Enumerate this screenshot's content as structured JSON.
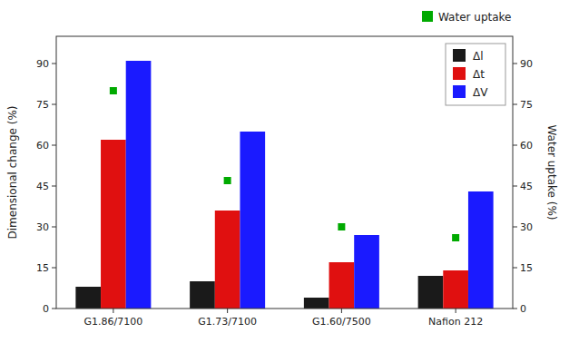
{
  "chart_data": {
    "type": "bar",
    "categories": [
      "G1.86/7100",
      "G1.73/7100",
      "G1.60/7500",
      "Nafion 212"
    ],
    "series": [
      {
        "name": "Δl",
        "color": "#1a1a1a",
        "values": [
          8,
          10,
          4,
          12
        ]
      },
      {
        "name": "Δt",
        "color": "#e01010",
        "values": [
          62,
          36,
          17,
          14
        ]
      },
      {
        "name": "ΔV",
        "color": "#1a1aff",
        "values": [
          91,
          65,
          27,
          43
        ]
      },
      {
        "name": "Water uptake",
        "type": "scatter",
        "axis": "y2",
        "marker": "square",
        "color": "#00aa00",
        "values": [
          80,
          47,
          30,
          26
        ]
      }
    ],
    "ylabel": "Dimensional change (%)",
    "y2label": "Water uptake (%)",
    "ylim": [
      0,
      100
    ],
    "yticks": [
      0,
      15,
      30,
      45,
      60,
      75,
      90
    ],
    "y2lim": [
      0,
      100
    ],
    "y2ticks": [
      0,
      15,
      30,
      45,
      60,
      75,
      90
    ],
    "grid": false,
    "legend": "upper right"
  }
}
